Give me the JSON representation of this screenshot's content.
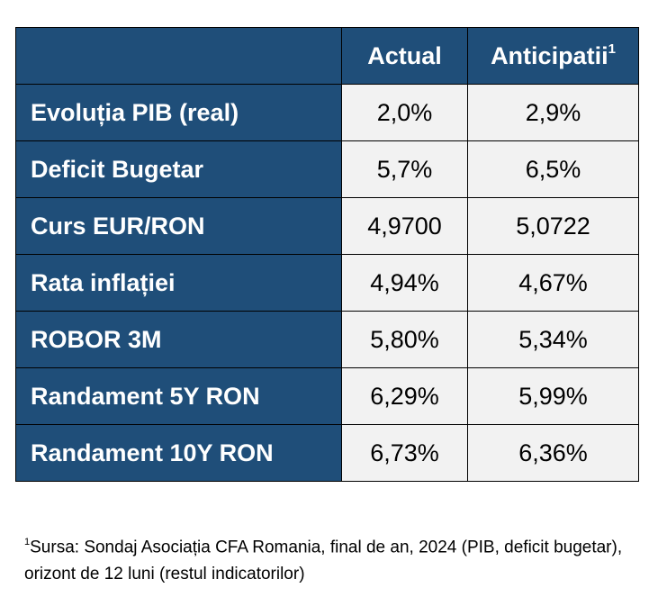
{
  "table": {
    "header": {
      "corner": "",
      "col_actual": "Actual",
      "col_anticipatii": "Anticipatii",
      "col_anticipatii_sup": "1"
    },
    "rows": [
      {
        "label": "Evoluția PIB (real)",
        "actual": "2,0%",
        "anticipatii": "2,9%"
      },
      {
        "label": "Deficit Bugetar",
        "actual": "5,7%",
        "anticipatii": "6,5%"
      },
      {
        "label": "Curs EUR/RON",
        "actual": "4,9700",
        "anticipatii": "5,0722"
      },
      {
        "label": "Rata inflației",
        "actual": "4,94%",
        "anticipatii": "4,67%"
      },
      {
        "label": "ROBOR 3M",
        "actual": "5,80%",
        "anticipatii": "5,34%"
      },
      {
        "label": "Randament 5Y RON",
        "actual": "6,29%",
        "anticipatii": "5,99%"
      },
      {
        "label": "Randament 10Y RON",
        "actual": "6,73%",
        "anticipatii": "6,36%"
      }
    ]
  },
  "footnote": {
    "marker": "1",
    "text": "Sursa: Sondaj Asociația CFA Romania, final de an, 2024 (PIB, deficit bugetar), orizont de 12 luni (restul indicatorilor)"
  },
  "colors": {
    "header_bg": "#1f4e79",
    "cell_bg": "#f2f2f2",
    "header_text": "#ffffff"
  }
}
